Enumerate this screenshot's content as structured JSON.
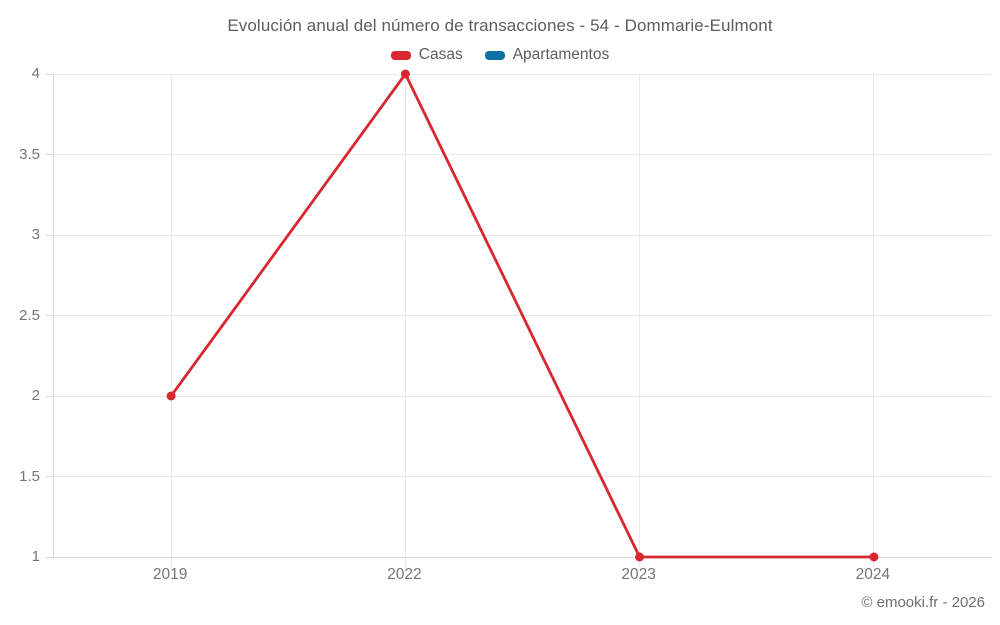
{
  "title": "Evolución anual del número de transacciones - 54 - Dommarie-Eulmont",
  "footer": "© emooki.fr - 2026",
  "legend": {
    "items": [
      {
        "label": "Casas",
        "color": "#d7282f"
      },
      {
        "label": "Apartamentos",
        "color": "#1071a3"
      }
    ]
  },
  "chart_data": {
    "type": "line",
    "title": "Evolución anual del número de transacciones - 54 - Dommarie-Eulmont",
    "categories": [
      "2019",
      "2022",
      "2023",
      "2024"
    ],
    "series": [
      {
        "name": "Casas",
        "color": "#d7282f",
        "values": [
          2,
          4,
          1,
          1
        ]
      },
      {
        "name": "Apartamentos",
        "color": "#1071a3",
        "values": []
      }
    ],
    "xlabel": "",
    "ylabel": "",
    "ylim": [
      1,
      4
    ],
    "yticks": [
      1,
      1.5,
      2,
      2.5,
      3,
      3.5,
      4
    ],
    "grid": true,
    "legend_position": "top",
    "marker": "circle"
  },
  "colors": {
    "background": "#ffffff",
    "gridline": "#e9e9e9",
    "axis_line": "#d9d9d9",
    "title_text": "#5d5d5d",
    "axis_text": "#757575",
    "footer_text": "#6f6f6f"
  }
}
